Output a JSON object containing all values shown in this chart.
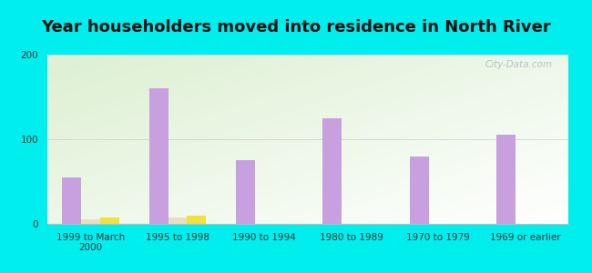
{
  "title": "Year householders moved into residence in North River",
  "categories": [
    "1999 to March\n2000",
    "1995 to 1998",
    "1990 to 1994",
    "1980 to 1989",
    "1970 to 1979",
    "1969 or earlier"
  ],
  "series": {
    "White Non-Hispanic": {
      "values": [
        55,
        160,
        75,
        125,
        80,
        105
      ],
      "color": "#c8a0e0"
    },
    "Black": {
      "values": [
        5,
        8,
        0,
        0,
        0,
        0
      ],
      "color": "#e8dfc0"
    },
    "American Indian and Alaska Native": {
      "values": [
        8,
        10,
        0,
        0,
        0,
        0
      ],
      "color": "#f0e040"
    }
  },
  "ylim": [
    0,
    200
  ],
  "yticks": [
    0,
    100,
    200
  ],
  "bg_color": "#00eeee",
  "bar_width": 0.22,
  "title_fontsize": 13,
  "tick_fontsize": 7.5,
  "legend_fontsize": 8.5,
  "watermark": "City-Data.com"
}
